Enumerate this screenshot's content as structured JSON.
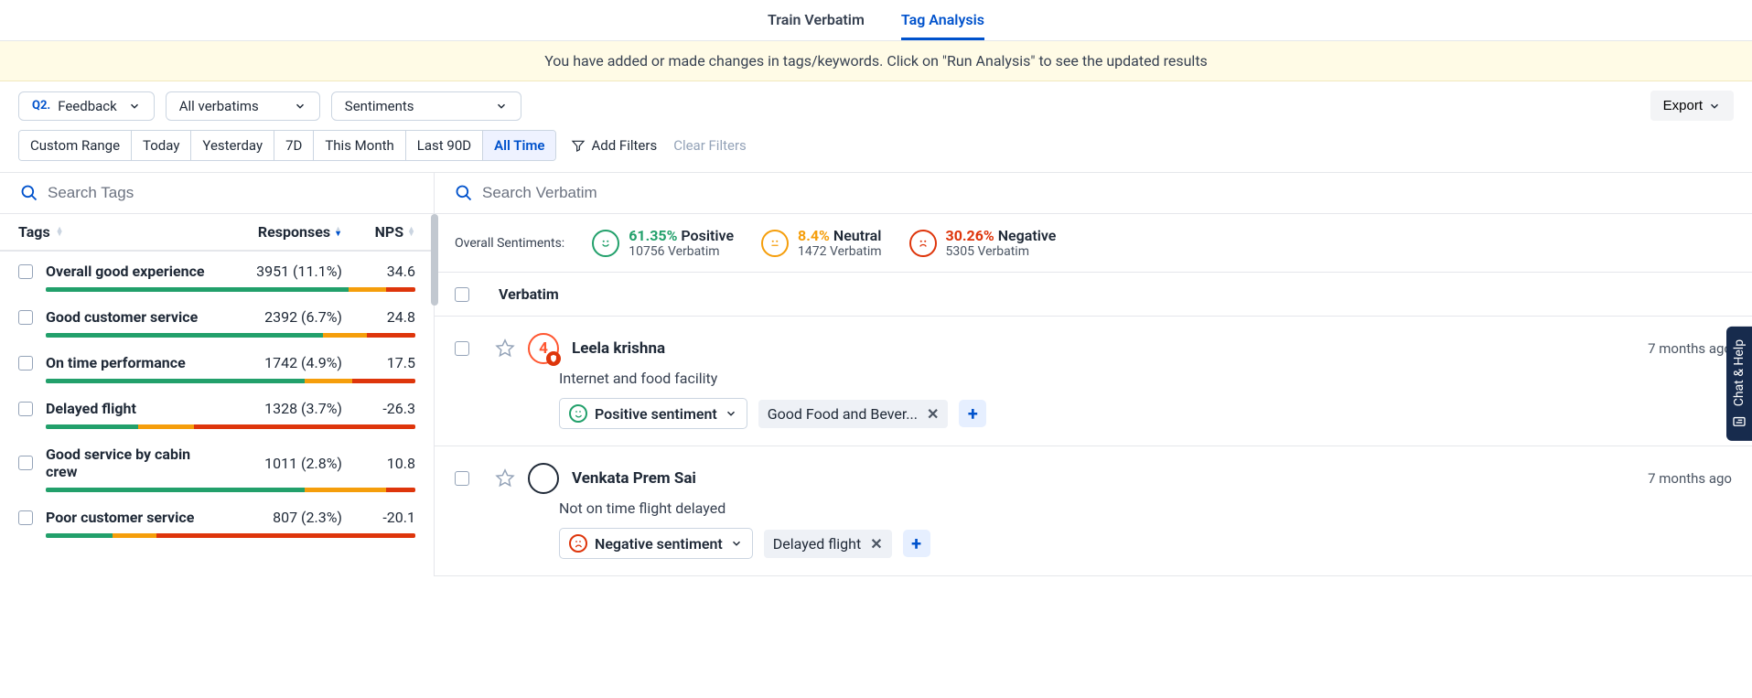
{
  "tabs": {
    "train": "Train Verbatim",
    "analysis": "Tag Analysis"
  },
  "banner": "You have added or made changes in tags/keywords. Click on \"Run Analysis\" to see the updated results",
  "filters": {
    "question_prefix": "Q2.",
    "question_label": "Feedback",
    "verbatims": "All verbatims",
    "sentiments": "Sentiments",
    "export": "Export"
  },
  "date_ranges": [
    "Custom Range",
    "Today",
    "Yesterday",
    "7D",
    "This Month",
    "Last 90D",
    "All Time"
  ],
  "date_active_index": 6,
  "add_filters": "Add Filters",
  "clear_filters": "Clear Filters",
  "search_tags_placeholder": "Search Tags",
  "search_verbatim_placeholder": "Search Verbatim",
  "tags_table": {
    "col_tags": "Tags",
    "col_responses": "Responses",
    "col_nps": "NPS"
  },
  "colors": {
    "positive": "#22a06b",
    "neutral": "#f59e0b",
    "negative": "#de350b",
    "link": "#0052cc"
  },
  "tags": [
    {
      "name": "Overall good experience",
      "responses": "3951 (11.1%)",
      "nps": "34.6",
      "bar": {
        "g": 82,
        "y": 10,
        "r": 8
      }
    },
    {
      "name": "Good customer service",
      "responses": "2392 (6.7%)",
      "nps": "24.8",
      "bar": {
        "g": 75,
        "y": 12,
        "r": 13
      }
    },
    {
      "name": "On time performance",
      "responses": "1742 (4.9%)",
      "nps": "17.5",
      "bar": {
        "g": 70,
        "y": 13,
        "r": 17
      }
    },
    {
      "name": "Delayed flight",
      "responses": "1328 (3.7%)",
      "nps": "-26.3",
      "bar": {
        "g": 25,
        "y": 15,
        "r": 60
      }
    },
    {
      "name": "Good service by cabin crew",
      "responses": "1011 (2.8%)",
      "nps": "10.8",
      "bar": {
        "g": 70,
        "y": 22,
        "r": 8
      }
    },
    {
      "name": "Poor customer service",
      "responses": "807 (2.3%)",
      "nps": "-20.1",
      "bar": {
        "g": 18,
        "y": 12,
        "r": 70
      }
    }
  ],
  "overall": {
    "label": "Overall Sentiments:",
    "positive": {
      "pct": "61.35%",
      "label": "Positive",
      "sub": "10756 Verbatim"
    },
    "neutral": {
      "pct": "8.4%",
      "label": "Neutral",
      "sub": "1472 Verbatim"
    },
    "negative": {
      "pct": "30.26%",
      "label": "Negative",
      "sub": "5305 Verbatim"
    }
  },
  "verbatim_header": "Verbatim",
  "verbatims": [
    {
      "avatar_num": "4",
      "name": "Leela krishna",
      "time": "7 months ago",
      "text": "Internet and food facility",
      "sentiment_label": "Positive sentiment",
      "sentiment_type": "positive",
      "chips": [
        "Good Food and Bever..."
      ]
    },
    {
      "avatar_num": "",
      "name": "Venkata Prem Sai",
      "time": "7 months ago",
      "text": "Not on time flight delayed",
      "sentiment_label": "Negative sentiment",
      "sentiment_type": "negative",
      "chips": [
        "Delayed flight"
      ]
    }
  ],
  "chat_help": "Chat & Help"
}
